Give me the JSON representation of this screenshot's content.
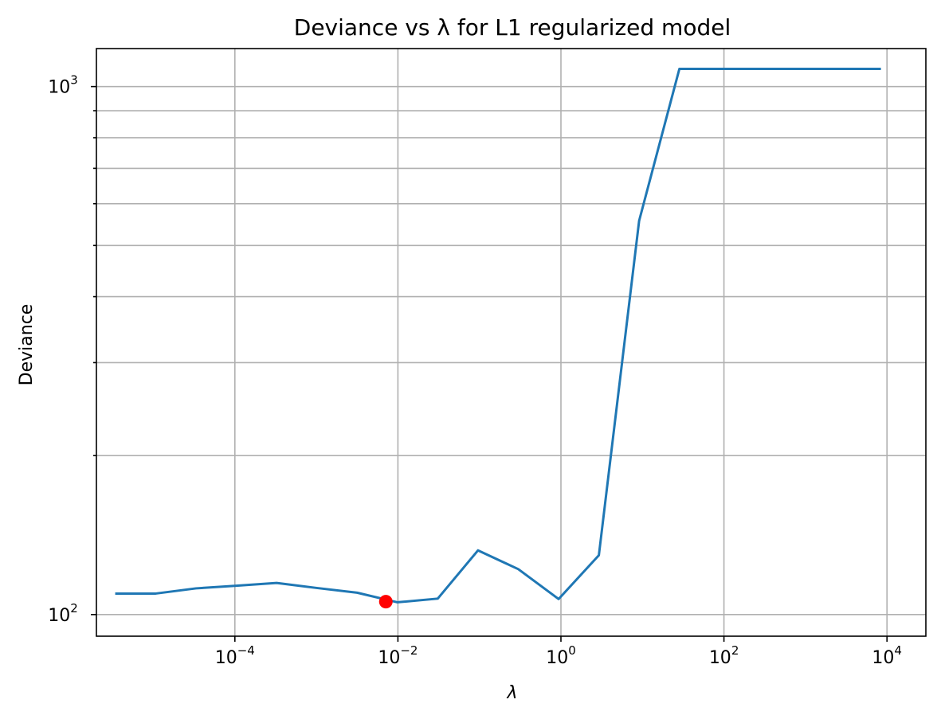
{
  "chart_data": {
    "type": "line",
    "title": "Deviance vs λ for L1 regularized model",
    "xlabel": "λ",
    "ylabel": "Deviance",
    "xscale": "log",
    "yscale": "log",
    "xlim": [
      2e-06,
      30000
    ],
    "ylim": [
      91,
      1180
    ],
    "grid": true,
    "x_ticks": [
      {
        "base": "10",
        "exp": "−4",
        "value": 0.0001
      },
      {
        "base": "10",
        "exp": "−2",
        "value": 0.01
      },
      {
        "base": "10",
        "exp": "0",
        "value": 1
      },
      {
        "base": "10",
        "exp": "2",
        "value": 100
      },
      {
        "base": "10",
        "exp": "4",
        "value": 10000
      }
    ],
    "y_ticks": [
      {
        "base": "10",
        "exp": "2",
        "value": 100
      },
      {
        "base": "10",
        "exp": "3",
        "value": 1000
      }
    ],
    "series": [
      {
        "color": "#1f77b4",
        "x": [
          3.4e-06,
          1.07e-05,
          3.33e-05,
          0.000104,
          0.000325,
          0.00101,
          0.00316,
          0.00987,
          0.0308,
          0.0961,
          0.3,
          0.936,
          2.92,
          9.11,
          28.4,
          88.7,
          277,
          864,
          2700,
          8430
        ],
        "y": [
          109.6,
          109.6,
          112.1,
          113.4,
          114.8,
          112.3,
          110.0,
          105.5,
          107.2,
          132.3,
          121.9,
          107.0,
          129.5,
          557,
          1080,
          1080,
          1080,
          1080,
          1080,
          1080
        ]
      }
    ],
    "highlight_point": {
      "x": 0.00711,
      "y": 105.8,
      "color": "#ff0000"
    }
  }
}
